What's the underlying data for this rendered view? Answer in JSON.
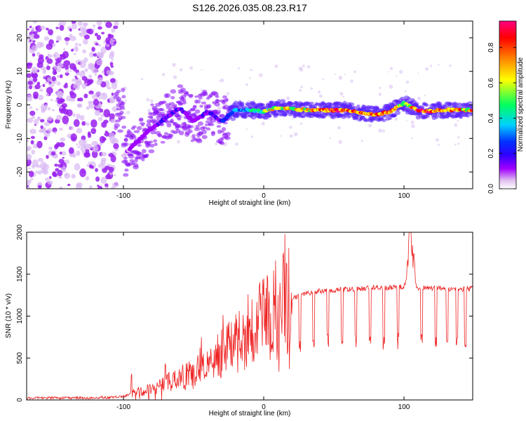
{
  "title": "S126.2026.035.08.23.R17",
  "chart_data": [
    {
      "type": "heatmap",
      "xlabel": "Height of straight line (km)",
      "ylabel": "Frequency (Hz)",
      "xlim": [
        -169,
        149
      ],
      "ylim": [
        -25,
        25
      ],
      "xticks": [
        -100,
        0,
        100
      ],
      "yticks": [
        20,
        10,
        0,
        -10,
        -20
      ],
      "colorbar": {
        "label": "Normalized spectral amplitude",
        "range": [
          0,
          0.95
        ],
        "ticks": [
          "0.0",
          "0.2",
          "0.4",
          "0.6",
          "0.8"
        ],
        "tick_values": [
          0.0,
          0.2,
          0.4,
          0.6,
          0.8
        ],
        "colormap": [
          "#ffffff",
          "#e0c0f0",
          "#a000ff",
          "#3000ff",
          "#0030ff",
          "#00d0ff",
          "#00ff60",
          "#ffff00",
          "#ff8000",
          "#ff0000",
          "#ff0080"
        ]
      },
      "ridge": {
        "x": [
          -100,
          -90,
          -80,
          -70,
          -60,
          -50,
          -40,
          -30,
          -20,
          -10,
          0,
          10,
          20,
          30,
          40,
          50,
          60,
          70,
          80,
          90,
          100,
          110,
          120,
          130,
          140,
          149
        ],
        "freq": [
          -15,
          -11,
          -7,
          -4,
          -1,
          -5,
          -2,
          -5,
          -1.5,
          -1.5,
          -2,
          -0.8,
          -1.2,
          -1.5,
          -1.6,
          -1.6,
          -1.6,
          -2.5,
          -3,
          -2,
          0.5,
          -1.7,
          -1.8,
          -1.5,
          -1.5,
          -1.5
        ],
        "amplitude": [
          0.15,
          0.2,
          0.2,
          0.25,
          0.25,
          0.2,
          0.25,
          0.3,
          0.45,
          0.55,
          0.65,
          0.7,
          0.7,
          0.75,
          0.85,
          0.9,
          0.9,
          0.85,
          0.8,
          0.85,
          0.6,
          0.85,
          0.85,
          0.8,
          0.8,
          0.8
        ]
      },
      "noise_region_x": [
        -169,
        -105
      ],
      "series_color": "#a000ff"
    },
    {
      "type": "line",
      "xlabel": "Height of straight line (km)",
      "ylabel": "SNR (10 * v/v)",
      "xlim": [
        -169,
        149
      ],
      "ylim": [
        0,
        2000
      ],
      "xticks": [
        -100,
        0,
        100
      ],
      "yticks": [
        0,
        500,
        1000,
        1500,
        2000
      ],
      "series": [
        {
          "name": "SNR",
          "color": "#ee2222",
          "x": [
            -169,
            -150,
            -130,
            -110,
            -100,
            -95,
            -90,
            -85,
            -80,
            -75,
            -70,
            -65,
            -60,
            -55,
            -50,
            -45,
            -40,
            -35,
            -30,
            -25,
            -20,
            -15,
            -10,
            -5,
            0,
            5,
            10,
            15,
            20,
            25,
            30,
            40,
            50,
            60,
            70,
            80,
            90,
            100,
            103,
            105,
            107,
            110,
            120,
            130,
            140,
            149
          ],
          "values": [
            20,
            25,
            25,
            30,
            40,
            70,
            100,
            110,
            130,
            160,
            200,
            230,
            260,
            290,
            330,
            370,
            420,
            480,
            550,
            620,
            700,
            770,
            850,
            920,
            980,
            1040,
            1100,
            1160,
            1200,
            1240,
            1270,
            1300,
            1310,
            1320,
            1330,
            1340,
            1340,
            1350,
            1500,
            1850,
            1400,
            1340,
            1330,
            1330,
            1320,
            1330
          ]
        }
      ],
      "dropouts_x": [
        -8,
        5,
        18,
        25,
        35,
        45,
        55,
        65,
        75,
        85,
        95,
        112,
        122,
        130,
        137,
        143
      ]
    }
  ]
}
